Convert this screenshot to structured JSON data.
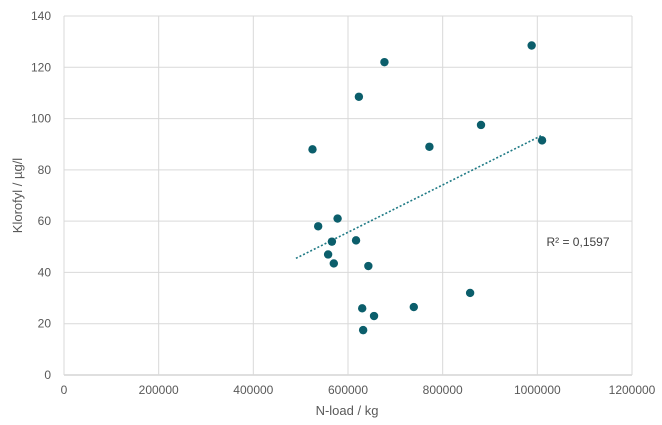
{
  "chart_data": {
    "type": "scatter",
    "xlabel": "N-load / kg",
    "ylabel": "Klorofyl / µg/l",
    "xlim": [
      0,
      1200000
    ],
    "ylim": [
      0,
      140
    ],
    "x_ticks": [
      0,
      200000,
      400000,
      600000,
      800000,
      1000000,
      1200000
    ],
    "y_ticks": [
      0,
      20,
      40,
      60,
      80,
      100,
      120,
      140
    ],
    "x_tick_labels": [
      "0",
      "200000",
      "400000",
      "600000",
      "800000",
      "1000000",
      "1200000"
    ],
    "y_tick_labels": [
      "0",
      "20",
      "40",
      "60",
      "80",
      "100",
      "120",
      "140"
    ],
    "grid": true,
    "marker_color": "#0b5e6b",
    "trendline_color": "#1f7a85",
    "points": [
      {
        "x": 525000,
        "y": 88
      },
      {
        "x": 537000,
        "y": 58
      },
      {
        "x": 558000,
        "y": 47
      },
      {
        "x": 566000,
        "y": 52
      },
      {
        "x": 570000,
        "y": 43.5
      },
      {
        "x": 578000,
        "y": 61
      },
      {
        "x": 617000,
        "y": 52.5
      },
      {
        "x": 623000,
        "y": 108.5
      },
      {
        "x": 630000,
        "y": 26
      },
      {
        "x": 632000,
        "y": 17.5
      },
      {
        "x": 643000,
        "y": 42.5
      },
      {
        "x": 655000,
        "y": 23
      },
      {
        "x": 677000,
        "y": 122
      },
      {
        "x": 739000,
        "y": 26.5
      },
      {
        "x": 772000,
        "y": 89
      },
      {
        "x": 858000,
        "y": 32
      },
      {
        "x": 881000,
        "y": 97.5
      },
      {
        "x": 988000,
        "y": 128.5
      },
      {
        "x": 1010000,
        "y": 91.5
      }
    ],
    "trendline": {
      "type": "linear",
      "x": [
        490000,
        1010000
      ],
      "y": [
        45.5,
        93.5
      ],
      "r_squared_label": "R² = 0,1597"
    }
  }
}
